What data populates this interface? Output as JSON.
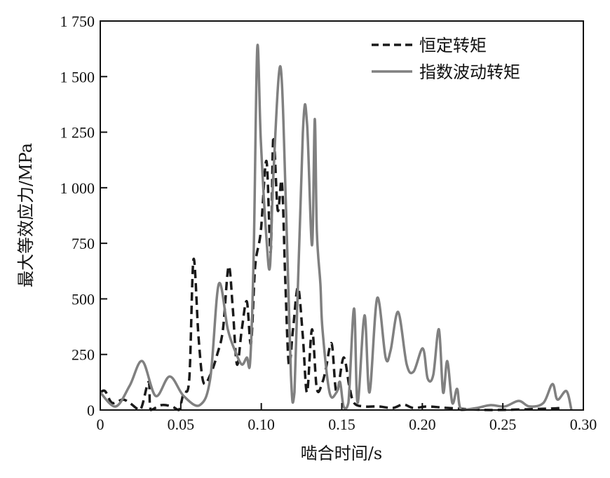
{
  "chart_data": {
    "type": "line",
    "title": "",
    "xlabel": "啮合时间/s",
    "ylabel": "最大等效应力/MPa",
    "xlim": [
      0,
      0.3
    ],
    "ylim": [
      0,
      1750
    ],
    "xticks": [
      0,
      0.05,
      0.1,
      0.15,
      0.2,
      0.25,
      0.3
    ],
    "xtick_labels": [
      "0",
      "0.05",
      "0.10",
      "0.15",
      "0.20",
      "0.25",
      "0.30"
    ],
    "yticks": [
      0,
      250,
      500,
      750,
      1000,
      1250,
      1500,
      1750
    ],
    "ytick_labels": [
      "0",
      "250",
      "500",
      "750",
      "1 000",
      "1 250",
      "1 500",
      "1 750"
    ],
    "grid": false,
    "legend_position": "top-right",
    "series": [
      {
        "name": "恒定转矩",
        "style": "dashed",
        "color": "#1a1a1a",
        "x": [
          0,
          0.003,
          0.0074,
          0.0139,
          0.0183,
          0.0248,
          0.03,
          0.0314,
          0.0379,
          0.0444,
          0.0488,
          0.0518,
          0.0553,
          0.0579,
          0.061,
          0.064,
          0.0683,
          0.0727,
          0.0762,
          0.0797,
          0.0823,
          0.0849,
          0.0879,
          0.091,
          0.0936,
          0.0962,
          0.0997,
          0.1032,
          0.1058,
          0.1075,
          0.1102,
          0.1128,
          0.1149,
          0.1171,
          0.1197,
          0.1228,
          0.1258,
          0.1284,
          0.1315,
          0.1345,
          0.138,
          0.1402,
          0.1437,
          0.1467,
          0.1511,
          0.1546,
          0.1576,
          0.1641,
          0.1729,
          0.1816,
          0.1881,
          0.1946,
          0.2033,
          0.2164,
          0.2425,
          0.2774,
          0.2861
        ],
        "y": [
          79,
          85,
          32,
          47,
          32,
          0,
          126,
          0,
          22,
          16,
          0,
          79,
          142,
          678,
          331,
          126,
          158,
          252,
          363,
          646,
          457,
          205,
          363,
          489,
          299,
          646,
          804,
          1120,
          709,
          1230,
          899,
          1025,
          583,
          205,
          363,
          552,
          331,
          79,
          363,
          95,
          126,
          189,
          299,
          79,
          236,
          110,
          32,
          16,
          16,
          9,
          25,
          9,
          16,
          9,
          0,
          6,
          9
        ]
      },
      {
        "name": "指数波动转矩",
        "style": "solid",
        "color": "#808080",
        "x": [
          0,
          0.0096,
          0.0183,
          0.0261,
          0.0344,
          0.0431,
          0.0518,
          0.0618,
          0.0683,
          0.0736,
          0.0792,
          0.0836,
          0.0879,
          0.091,
          0.0931,
          0.0953,
          0.0975,
          0.0997,
          0.1032,
          0.1054,
          0.1075,
          0.1119,
          0.1154,
          0.1184,
          0.1206,
          0.1258,
          0.1284,
          0.1315,
          0.1332,
          0.1345,
          0.1367,
          0.138,
          0.1424,
          0.1467,
          0.1489,
          0.1511,
          0.1541,
          0.1576,
          0.1598,
          0.1641,
          0.1672,
          0.172,
          0.1772,
          0.1803,
          0.185,
          0.1903,
          0.1946,
          0.2003,
          0.2033,
          0.2068,
          0.2103,
          0.2129,
          0.2155,
          0.2186,
          0.2216,
          0.2242,
          0.2338,
          0.2425,
          0.2512,
          0.2599,
          0.2665,
          0.2752,
          0.2808,
          0.2839,
          0.2895,
          0.2926
        ],
        "y": [
          79,
          16,
          110,
          220,
          63,
          151,
          63,
          22,
          142,
          567,
          363,
          268,
          205,
          236,
          220,
          709,
          1630,
          1214,
          772,
          646,
          1056,
          1545,
          899,
          158,
          79,
          1246,
          1290,
          741,
          1309,
          804,
          567,
          363,
          79,
          79,
          126,
          16,
          32,
          457,
          32,
          426,
          79,
          504,
          236,
          268,
          441,
          205,
          173,
          277,
          142,
          158,
          363,
          79,
          220,
          32,
          95,
          0,
          9,
          22,
          16,
          41,
          16,
          32,
          117,
          47,
          85,
          0
        ]
      }
    ]
  }
}
